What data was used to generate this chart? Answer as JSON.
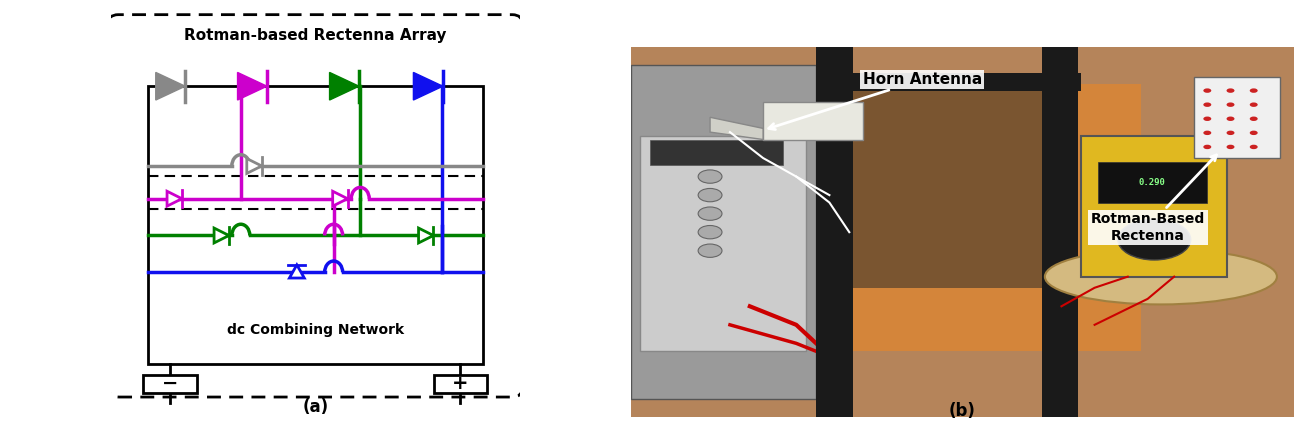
{
  "fig_width": 13.0,
  "fig_height": 4.26,
  "dpi": 100,
  "bg_color": "#ffffff",
  "label_a": "(a)",
  "label_b": "(b)",
  "title_array": "Rotman-based Rectenna Array",
  "title_dc": "dc Combining Network",
  "label_horn": "Horn Antenna",
  "label_rectenna": "Rotman-Based\nRectenna",
  "colors": {
    "gray": "#888888",
    "magenta": "#CC00CC",
    "green": "#008000",
    "blue": "#1010EE",
    "black": "#000000"
  }
}
